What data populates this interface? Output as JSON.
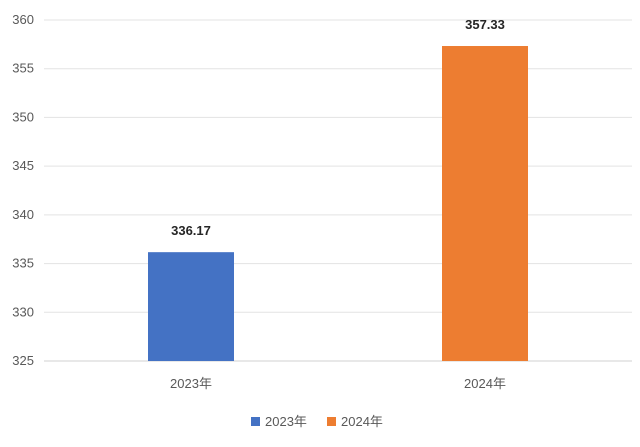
{
  "chart_data": {
    "type": "bar",
    "categories": [
      "2023年",
      "2024年"
    ],
    "values": [
      336.17,
      357.33
    ],
    "data_labels": [
      "336.17",
      "357.33"
    ],
    "ylim": [
      325,
      360
    ],
    "yticks": [
      325,
      330,
      335,
      340,
      345,
      350,
      355,
      360
    ],
    "grid": true,
    "legend_position": "bottom",
    "series": [
      {
        "name": "2023年",
        "color": "#4472C4"
      },
      {
        "name": "2024年",
        "color": "#ED7D31"
      }
    ]
  }
}
